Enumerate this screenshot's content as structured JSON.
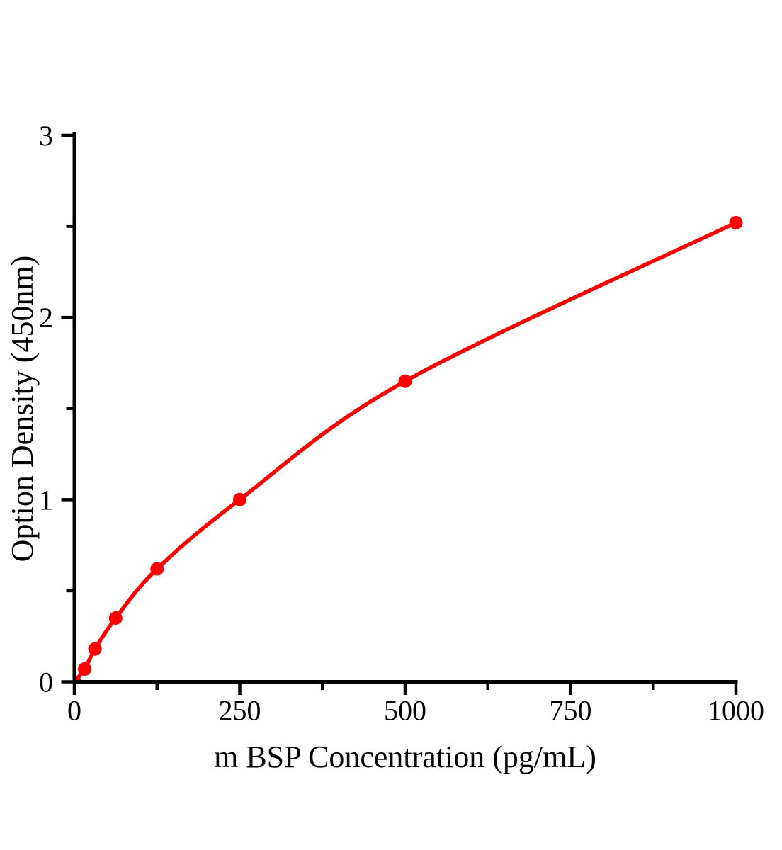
{
  "figure": {
    "background_color": "#ffffff",
    "text_color": "#000000"
  },
  "chart_data": {
    "type": "line",
    "title": "",
    "xlabel": "m BSP Concentration（pg/mL）",
    "ylabel": "Option Density（450nm）",
    "x": [
      0,
      15.6,
      31.2,
      62.5,
      125,
      250,
      500,
      1000
    ],
    "y": [
      0,
      0.07,
      0.18,
      0.35,
      0.62,
      1.0,
      1.65,
      2.52
    ],
    "xlim": [
      0,
      1000
    ],
    "ylim": [
      0,
      3
    ],
    "x_major_ticks": [
      0,
      250,
      500,
      750,
      1000
    ],
    "x_minor_ticks": [
      125,
      375,
      625,
      875
    ],
    "y_major_ticks": [
      0,
      1,
      2,
      3
    ],
    "y_minor_ticks": [
      0.5,
      1.5,
      2.5
    ],
    "x_tick_labels": [
      "0",
      "250",
      "500",
      "750",
      "1000"
    ],
    "y_tick_labels": [
      "0",
      "1",
      "2",
      "3"
    ],
    "grid": false,
    "legend_position": "none",
    "line_color": "#ff0000",
    "marker": "circle",
    "marker_color": "#ff0000",
    "axis_color": "#000000"
  }
}
